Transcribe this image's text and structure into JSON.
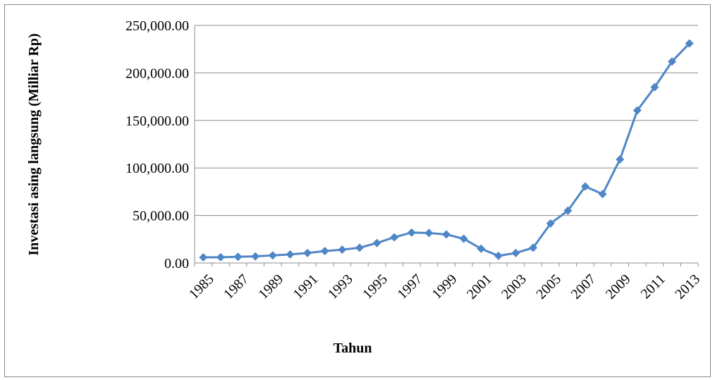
{
  "chart_data": {
    "type": "line",
    "xlabel": "Tahun",
    "ylabel": "Investasi asing langsung (Milliar Rp)",
    "categories": [
      "1985",
      null,
      "1987",
      null,
      "1989",
      null,
      "1991",
      null,
      "1993",
      null,
      "1995",
      null,
      "1997",
      null,
      "1999",
      null,
      "2001",
      null,
      "2003",
      null,
      "2005",
      null,
      "2007",
      null,
      "2009",
      null,
      "2011",
      null,
      "2013"
    ],
    "series": [
      {
        "color": "#4f86c6",
        "values": [
          5900,
          6000,
          6500,
          7000,
          8000,
          9000,
          10500,
          12500,
          14000,
          16000,
          21000,
          27000,
          32000,
          31500,
          30000,
          25500,
          15000,
          7500,
          10500,
          16000,
          41500,
          55000,
          80500,
          72500,
          109000,
          160500,
          185000,
          212000,
          231000
        ]
      }
    ],
    "ylim": [
      0,
      250000
    ],
    "yticks": [
      {
        "value": 0,
        "label": "0.00"
      },
      {
        "value": 50000,
        "label": "50,000.00"
      },
      {
        "value": 100000,
        "label": "100,000.00"
      },
      {
        "value": 150000,
        "label": "150,000.00"
      },
      {
        "value": 200000,
        "label": "200,000.00"
      },
      {
        "value": 250000,
        "label": "250,000.00"
      }
    ],
    "grid": true
  }
}
